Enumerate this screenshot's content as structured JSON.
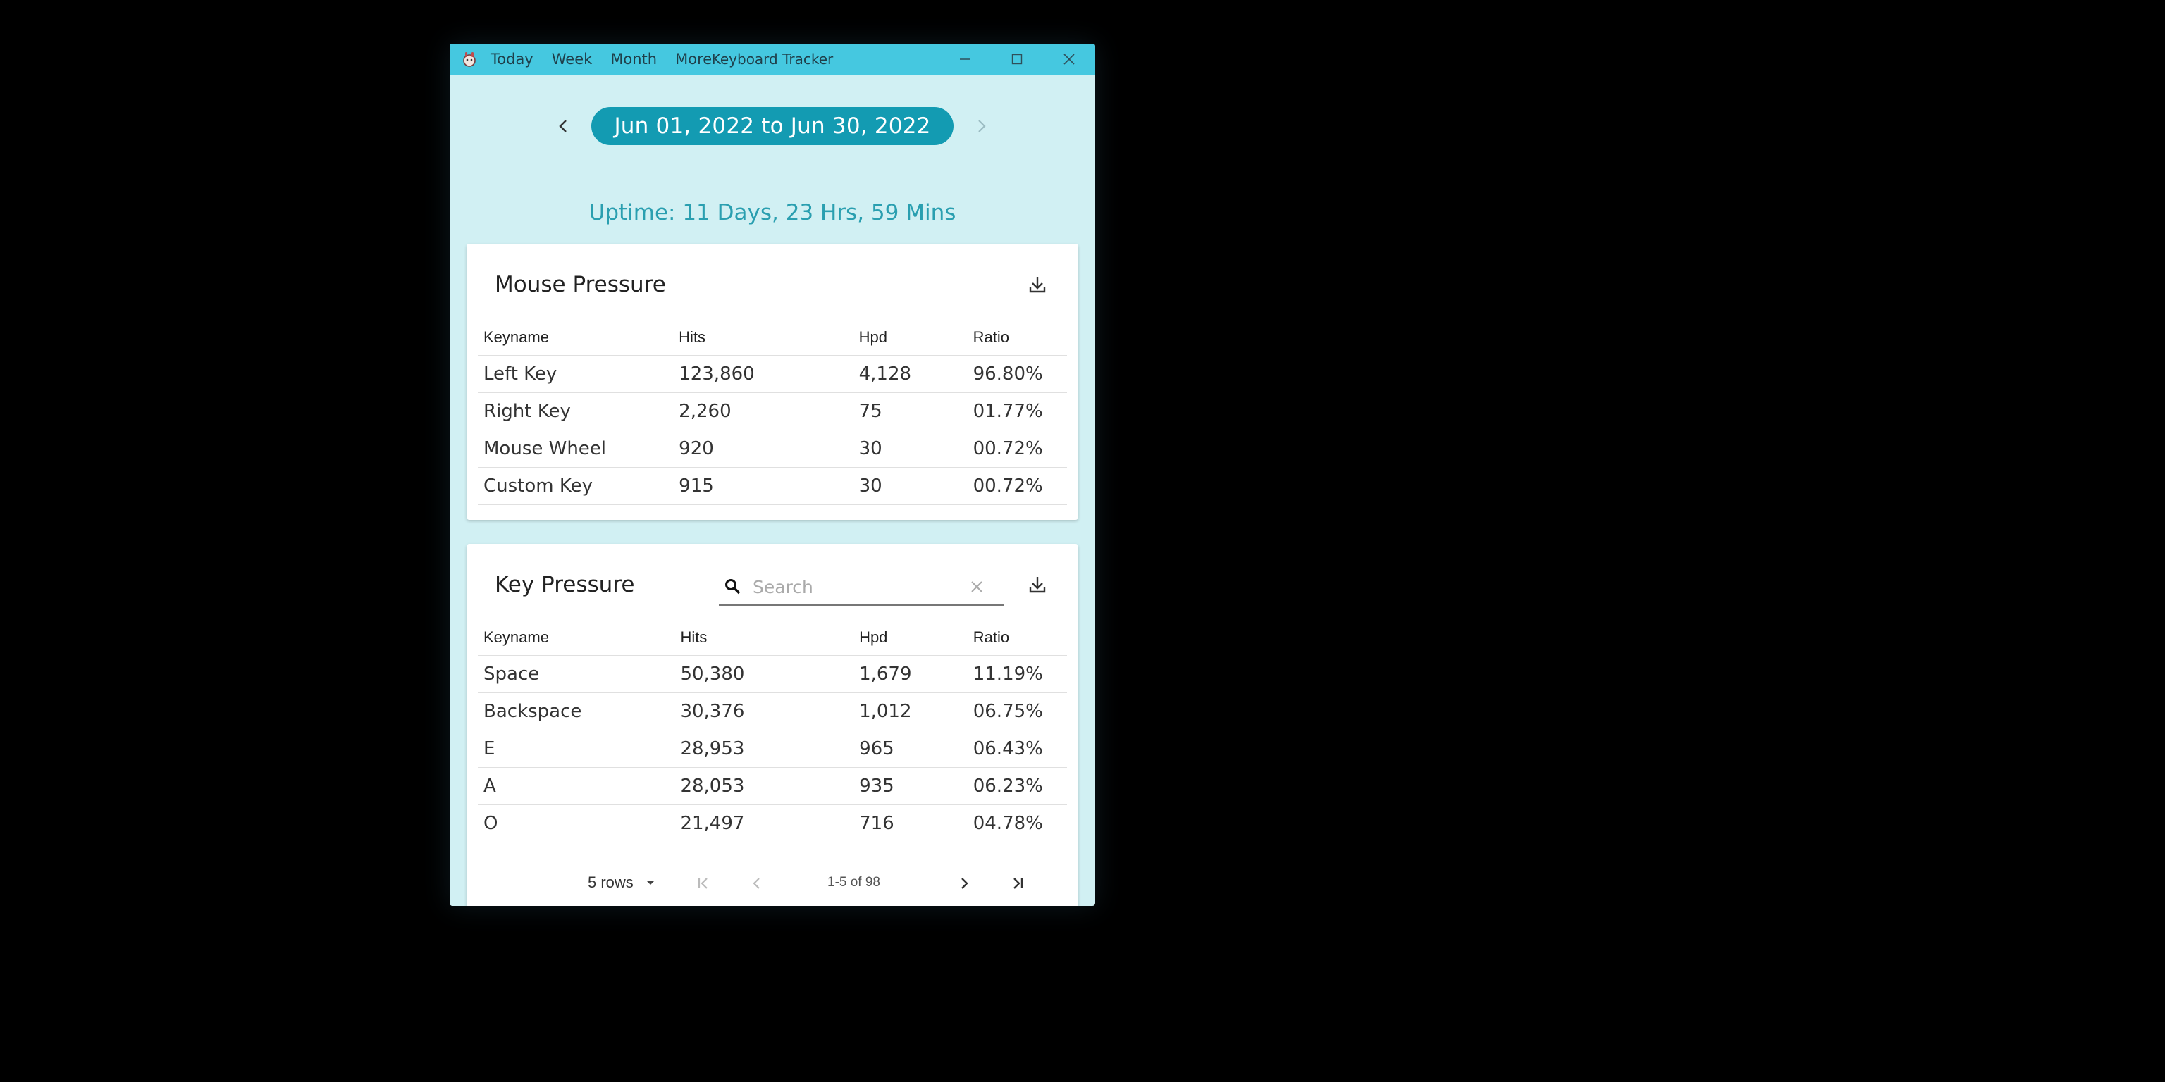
{
  "window": {
    "title": "Keyboard Tracker",
    "menu": [
      "Today",
      "Week",
      "Month",
      "More"
    ]
  },
  "date_range": {
    "label": "Jun 01, 2022 to Jun 30, 2022",
    "uptime": "Uptime: 11 Days, 23 Hrs, 59 Mins"
  },
  "mouse_pressure": {
    "title": "Mouse Pressure",
    "columns": [
      "Keyname",
      "Hits",
      "Hpd",
      "Ratio"
    ],
    "rows": [
      [
        "Left Key",
        "123,860",
        "4,128",
        "96.80%"
      ],
      [
        "Right Key",
        "2,260",
        "75",
        "01.77%"
      ],
      [
        "Mouse Wheel",
        "920",
        "30",
        "00.72%"
      ],
      [
        "Custom Key",
        "915",
        "30",
        "00.72%"
      ]
    ]
  },
  "key_pressure": {
    "title": "Key Pressure",
    "search_placeholder": "Search",
    "search_value": "",
    "columns": [
      "Keyname",
      "Hits",
      "Hpd",
      "Ratio"
    ],
    "rows": [
      [
        "Space",
        "50,380",
        "1,679",
        "11.19%"
      ],
      [
        "Backspace",
        "30,376",
        "1,012",
        "06.75%"
      ],
      [
        "E",
        "28,953",
        "965",
        "06.43%"
      ],
      [
        "A",
        "28,053",
        "935",
        "06.23%"
      ],
      [
        "O",
        "21,497",
        "716",
        "04.78%"
      ]
    ],
    "pagination": {
      "rows_per_page": "5 rows",
      "page_info": "1-5 of 98"
    }
  },
  "colors": {
    "titlebar": "#45c8e0",
    "background": "#d1f0f3",
    "accent": "#139bb2",
    "uptime_text": "#2a9fb0"
  }
}
